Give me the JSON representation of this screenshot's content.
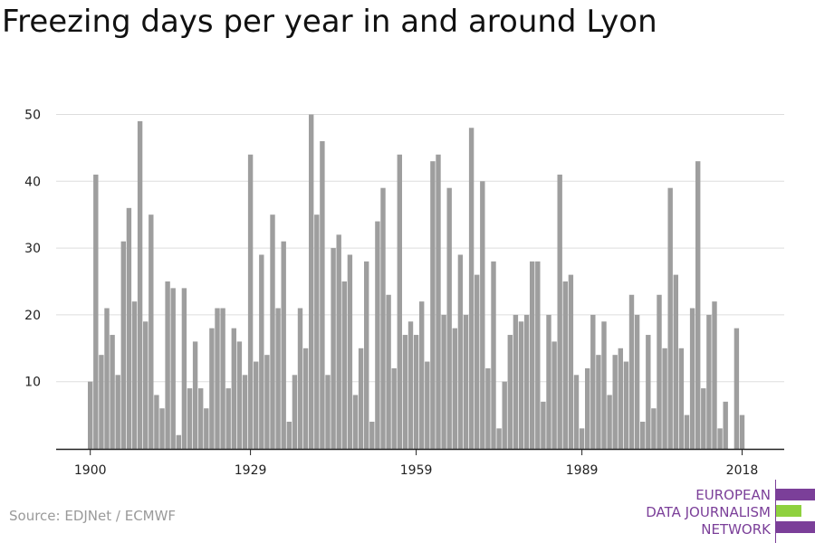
{
  "title": "Freezing days per year in and around Lyon",
  "source": "Source: EDJNet / ECMWF",
  "logo": {
    "line1": "EUROPEAN",
    "line2": "DATA JOURNALISM",
    "line3": "NETWORK",
    "colors": {
      "purple": "#7b3f99",
      "green": "#8fd13f"
    }
  },
  "colors": {
    "bar": "#9e9e9e",
    "grid": "#dddddd",
    "axis": "#222222"
  },
  "chart_data": {
    "type": "bar",
    "title": "Freezing days per year in and around Lyon",
    "xlabel": "",
    "ylabel": "",
    "x_ticks": [
      "1900",
      "1929",
      "1959",
      "1989",
      "2018"
    ],
    "y_ticks": [
      10,
      20,
      30,
      40,
      50
    ],
    "ylim": [
      0,
      50
    ],
    "grid": true,
    "categories": [
      1900,
      1901,
      1902,
      1903,
      1904,
      1905,
      1906,
      1907,
      1908,
      1909,
      1910,
      1911,
      1912,
      1913,
      1914,
      1915,
      1916,
      1917,
      1918,
      1919,
      1920,
      1921,
      1922,
      1923,
      1924,
      1925,
      1926,
      1927,
      1928,
      1929,
      1930,
      1931,
      1932,
      1933,
      1934,
      1935,
      1936,
      1937,
      1938,
      1939,
      1940,
      1941,
      1942,
      1943,
      1944,
      1945,
      1946,
      1947,
      1948,
      1949,
      1950,
      1951,
      1952,
      1953,
      1954,
      1955,
      1956,
      1957,
      1958,
      1959,
      1960,
      1961,
      1962,
      1963,
      1964,
      1965,
      1966,
      1967,
      1968,
      1969,
      1970,
      1971,
      1972,
      1973,
      1974,
      1975,
      1976,
      1977,
      1978,
      1979,
      1980,
      1981,
      1982,
      1983,
      1984,
      1985,
      1986,
      1987,
      1988,
      1989,
      1990,
      1991,
      1992,
      1993,
      1994,
      1995,
      1996,
      1997,
      1998,
      1999,
      2000,
      2001,
      2002,
      2003,
      2004,
      2005,
      2006,
      2007,
      2008,
      2009,
      2010,
      2011,
      2012,
      2013,
      2014,
      2015,
      2016,
      2017,
      2018,
      2019
    ],
    "values": [
      10,
      41,
      14,
      21,
      17,
      11,
      31,
      36,
      22,
      49,
      19,
      35,
      8,
      6,
      25,
      24,
      2,
      24,
      9,
      16,
      9,
      6,
      18,
      21,
      21,
      9,
      18,
      16,
      11,
      44,
      13,
      29,
      14,
      35,
      21,
      31,
      4,
      11,
      21,
      15,
      50,
      35,
      46,
      11,
      30,
      32,
      25,
      29,
      8,
      15,
      28,
      4,
      34,
      39,
      23,
      12,
      44,
      17,
      19,
      17,
      22,
      13,
      43,
      44,
      20,
      39,
      18,
      29,
      20,
      48,
      26,
      40,
      12,
      28,
      3,
      10,
      17,
      20,
      19,
      20,
      28,
      28,
      7,
      20,
      16,
      41,
      25,
      26,
      11,
      3,
      12,
      20,
      14,
      19,
      8,
      14,
      15,
      13,
      23,
      20,
      4,
      17,
      6,
      23,
      15,
      39,
      26,
      15,
      5,
      21,
      43,
      9,
      20,
      22,
      3,
      7,
      0,
      18,
      5,
      0
    ]
  }
}
